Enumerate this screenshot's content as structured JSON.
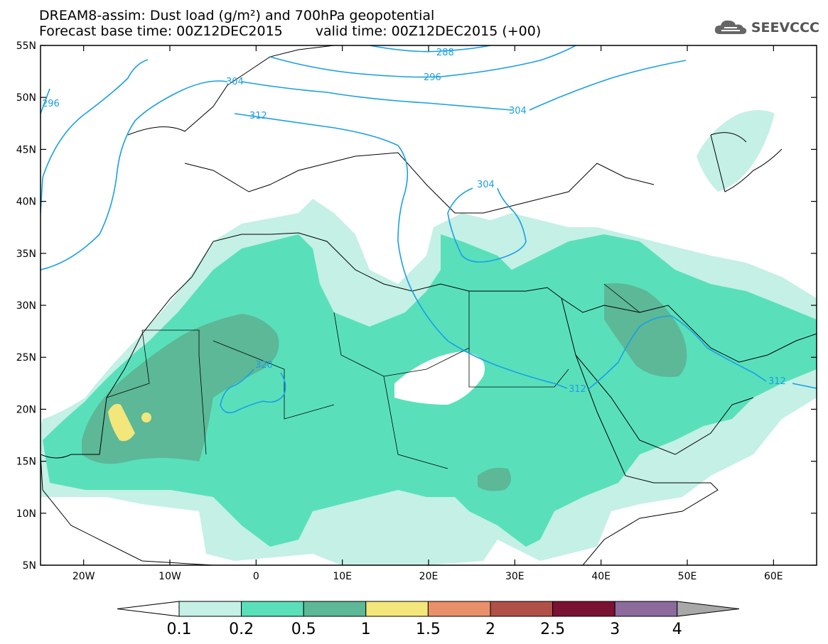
{
  "title": {
    "line1": "DREAM8-assim: Dust load (g/m²) and 700hPa geopotential",
    "base_time": "Forecast base time: 00Z12DEC2015",
    "valid_time": "valid time: 00Z12DEC2015 (+00)"
  },
  "logo": {
    "text": "SEEVCCC",
    "icon": "cloud-icon"
  },
  "map": {
    "lon_range": [
      -25,
      65
    ],
    "lat_range": [
      5,
      55
    ],
    "lat_ticks": [
      {
        "value": 55,
        "label": "55N"
      },
      {
        "value": 50,
        "label": "50N"
      },
      {
        "value": 45,
        "label": "45N"
      },
      {
        "value": 40,
        "label": "40N"
      },
      {
        "value": 35,
        "label": "35N"
      },
      {
        "value": 30,
        "label": "30N"
      },
      {
        "value": 25,
        "label": "25N"
      },
      {
        "value": 20,
        "label": "20N"
      },
      {
        "value": 15,
        "label": "15N"
      },
      {
        "value": 10,
        "label": "10N"
      },
      {
        "value": 5,
        "label": "5N"
      }
    ],
    "lon_ticks": [
      {
        "value": -20,
        "label": "20W"
      },
      {
        "value": -10,
        "label": "10W"
      },
      {
        "value": 0,
        "label": "0"
      },
      {
        "value": 10,
        "label": "10E"
      },
      {
        "value": 20,
        "label": "20E"
      },
      {
        "value": 30,
        "label": "30E"
      },
      {
        "value": 40,
        "label": "40E"
      },
      {
        "value": 50,
        "label": "50E"
      },
      {
        "value": 60,
        "label": "60E"
      }
    ],
    "contour_color": "#1a9fe6",
    "contour_labels": [
      "288",
      "296",
      "304",
      "312",
      "320"
    ]
  },
  "colorbar": {
    "levels": [
      "0.1",
      "0.2",
      "0.5",
      "1",
      "1.5",
      "2",
      "2.5",
      "3",
      "4"
    ],
    "colors": [
      "#ffffff",
      "#c4f0e6",
      "#59e0bb",
      "#5cb897",
      "#f3e67a",
      "#e8906a",
      "#b05048",
      "#7a1232",
      "#8c6a9c",
      "#a8a8a8"
    ]
  }
}
